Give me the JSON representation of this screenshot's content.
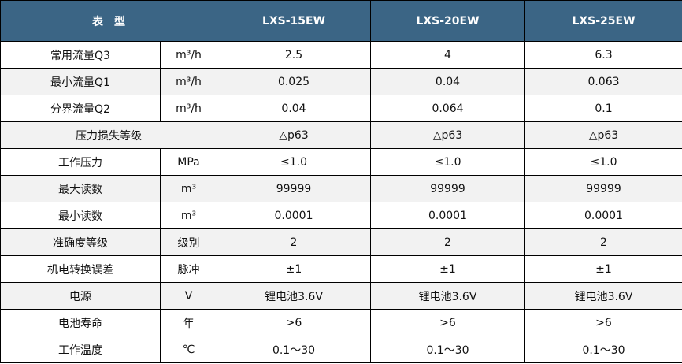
{
  "header": {
    "type_label": "表　型",
    "models": [
      "LXS-15EW",
      "LXS-20EW",
      "LXS-25EW"
    ]
  },
  "colors": {
    "header_bg": "#3b6585",
    "alt_row_bg": "#f2f2f2"
  },
  "rows": [
    {
      "param": "常用流量Q3",
      "unit": "m³/h",
      "values": [
        "2.5",
        "4",
        "6.3"
      ],
      "shaded": false
    },
    {
      "param": "最小流量Q1",
      "unit": "m³/h",
      "values": [
        "0.025",
        "0.04",
        "0.063"
      ],
      "shaded": true
    },
    {
      "param": "分界流量Q2",
      "unit": "m³/h",
      "values": [
        "0.04",
        "0.064",
        "0.1"
      ],
      "shaded": false
    },
    {
      "param": "压力损失等级",
      "unit": null,
      "values": [
        "△p63",
        "△p63",
        "△p63"
      ],
      "shaded": true
    },
    {
      "param": "工作压力",
      "unit": "MPa",
      "values": [
        "≤1.0",
        "≤1.0",
        "≤1.0"
      ],
      "shaded": false
    },
    {
      "param": "最大读数",
      "unit": "m³",
      "values": [
        "99999",
        "99999",
        "99999"
      ],
      "shaded": true
    },
    {
      "param": "最小读数",
      "unit": "m³",
      "values": [
        "0.0001",
        "0.0001",
        "0.0001"
      ],
      "shaded": false
    },
    {
      "param": "准确度等级",
      "unit": "级别",
      "values": [
        "2",
        "2",
        "2"
      ],
      "shaded": true
    },
    {
      "param": "机电转换误差",
      "unit": "脉冲",
      "values": [
        "±1",
        "±1",
        "±1"
      ],
      "shaded": false
    },
    {
      "param": "电源",
      "unit": "V",
      "values": [
        "锂电池3.6V",
        "锂电池3.6V",
        "锂电池3.6V"
      ],
      "shaded": true
    },
    {
      "param": "电池寿命",
      "unit": "年",
      "values": [
        ">6",
        ">6",
        ">6"
      ],
      "shaded": false
    },
    {
      "param": "工作温度",
      "unit": "℃",
      "values": [
        "0.1～30",
        "0.1～30",
        "0.1～30"
      ],
      "shaded": false
    }
  ]
}
